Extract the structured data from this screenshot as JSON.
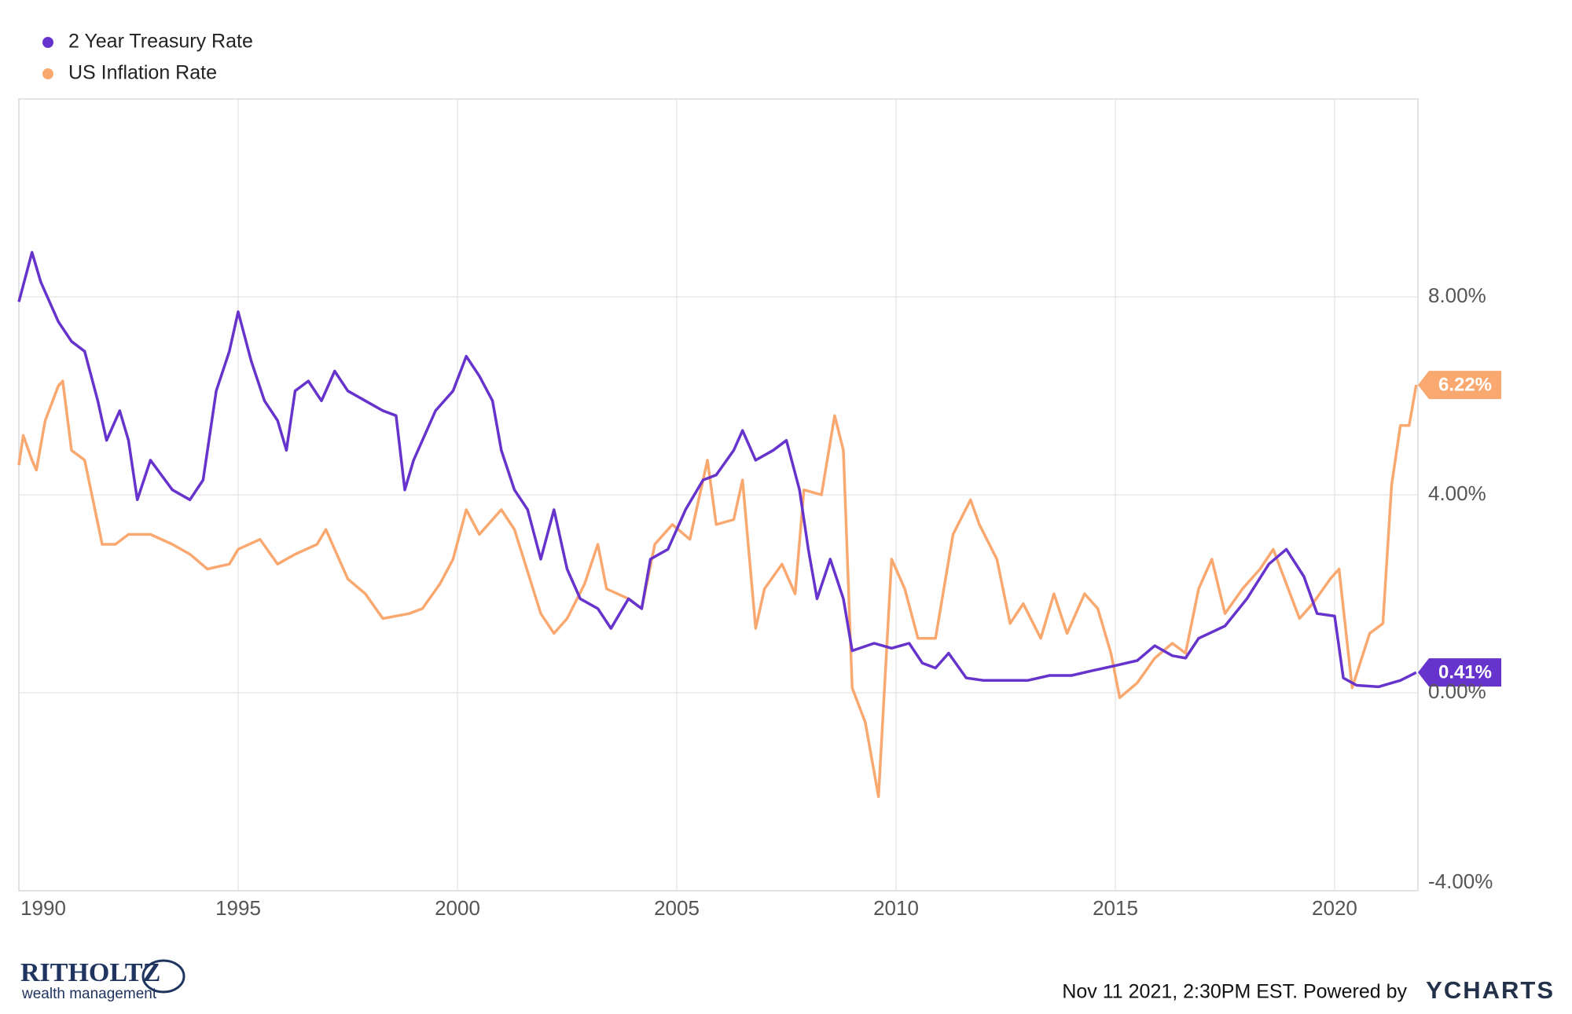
{
  "chart_data": {
    "type": "line",
    "xlim": [
      1990,
      2021.9
    ],
    "xticks": [
      1990,
      1995,
      2000,
      2005,
      2010,
      2015,
      2020
    ],
    "ylim": [
      -4,
      12
    ],
    "yticks": [
      {
        "value": -4,
        "label": "-4.00%"
      },
      {
        "value": 0,
        "label": "0.00%"
      },
      {
        "value": 4,
        "label": "4.00%"
      },
      {
        "value": 8,
        "label": "8.00%"
      }
    ],
    "grid": true,
    "legend": "top-left",
    "series": [
      {
        "name": "2 Year Treasury Rate",
        "color": "#6633cc",
        "last_label": "0.41%",
        "x": [
          1990.0,
          1990.3,
          1990.5,
          1990.9,
          1991.2,
          1991.5,
          1991.8,
          1992.0,
          1992.3,
          1992.5,
          1992.7,
          1993.0,
          1993.5,
          1993.9,
          1994.2,
          1994.5,
          1994.8,
          1995.0,
          1995.3,
          1995.6,
          1995.9,
          1996.1,
          1996.3,
          1996.6,
          1996.9,
          1997.2,
          1997.5,
          1997.9,
          1998.3,
          1998.6,
          1998.8,
          1999.0,
          1999.5,
          1999.9,
          2000.2,
          2000.5,
          2000.8,
          2001.0,
          2001.3,
          2001.6,
          2001.9,
          2002.2,
          2002.5,
          2002.8,
          2003.2,
          2003.5,
          2003.9,
          2004.2,
          2004.4,
          2004.8,
          2005.2,
          2005.6,
          2005.9,
          2006.3,
          2006.5,
          2006.8,
          2007.2,
          2007.5,
          2007.8,
          2008.0,
          2008.2,
          2008.5,
          2008.8,
          2009.0,
          2009.5,
          2009.9,
          2010.3,
          2010.6,
          2010.9,
          2011.2,
          2011.6,
          2012.0,
          2013.0,
          2013.5,
          2014.0,
          2014.5,
          2015.0,
          2015.5,
          2015.9,
          2016.3,
          2016.6,
          2016.9,
          2017.5,
          2018.0,
          2018.5,
          2018.9,
          2019.3,
          2019.6,
          2020.0,
          2020.2,
          2020.5,
          2021.0,
          2021.5,
          2021.86
        ],
        "values": [
          7.9,
          8.9,
          8.3,
          7.5,
          7.1,
          6.9,
          5.9,
          5.1,
          5.7,
          5.1,
          3.9,
          4.7,
          4.1,
          3.9,
          4.3,
          6.1,
          6.9,
          7.7,
          6.7,
          5.9,
          5.5,
          4.9,
          6.1,
          6.3,
          5.9,
          6.5,
          6.1,
          5.9,
          5.7,
          5.6,
          4.1,
          4.7,
          5.7,
          6.1,
          6.8,
          6.4,
          5.9,
          4.9,
          4.1,
          3.7,
          2.7,
          3.7,
          2.5,
          1.9,
          1.7,
          1.3,
          1.9,
          1.7,
          2.7,
          2.9,
          3.7,
          4.3,
          4.4,
          4.9,
          5.3,
          4.7,
          4.9,
          5.1,
          4.1,
          2.9,
          1.9,
          2.7,
          1.9,
          0.85,
          1.0,
          0.9,
          1.0,
          0.6,
          0.5,
          0.8,
          0.3,
          0.25,
          0.25,
          0.35,
          0.35,
          0.45,
          0.55,
          0.65,
          0.95,
          0.75,
          0.7,
          1.1,
          1.35,
          1.9,
          2.6,
          2.9,
          2.35,
          1.6,
          1.55,
          0.3,
          0.15,
          0.12,
          0.25,
          0.41
        ]
      },
      {
        "name": "US Inflation Rate",
        "color": "#f9a870",
        "last_label": "6.22%",
        "x": [
          1990.0,
          1990.1,
          1990.3,
          1990.4,
          1990.6,
          1990.9,
          1991.0,
          1991.2,
          1991.5,
          1991.9,
          1992.2,
          1992.5,
          1993.0,
          1993.5,
          1993.9,
          1994.3,
          1994.8,
          1995.0,
          1995.5,
          1995.9,
          1996.3,
          1996.8,
          1997.0,
          1997.5,
          1997.9,
          1998.3,
          1998.9,
          1999.2,
          1999.6,
          1999.9,
          2000.2,
          2000.5,
          2000.8,
          2001.0,
          2001.3,
          2001.9,
          2002.2,
          2002.5,
          2002.9,
          2003.2,
          2003.4,
          2003.9,
          2004.2,
          2004.5,
          2004.9,
          2005.3,
          2005.7,
          2005.9,
          2006.3,
          2006.5,
          2006.8,
          2007.0,
          2007.4,
          2007.7,
          2007.9,
          2008.3,
          2008.6,
          2008.8,
          2009.0,
          2009.3,
          2009.6,
          2009.9,
          2010.2,
          2010.5,
          2010.9,
          2011.3,
          2011.7,
          2011.9,
          2012.3,
          2012.6,
          2012.9,
          2013.3,
          2013.6,
          2013.9,
          2014.3,
          2014.6,
          2014.9,
          2015.1,
          2015.5,
          2015.9,
          2016.3,
          2016.6,
          2016.9,
          2017.2,
          2017.5,
          2017.9,
          2018.3,
          2018.6,
          2018.9,
          2019.2,
          2019.5,
          2019.9,
          2020.1,
          2020.4,
          2020.8,
          2021.1,
          2021.3,
          2021.5,
          2021.7,
          2021.86
        ],
        "values": [
          4.6,
          5.2,
          4.7,
          4.5,
          5.5,
          6.2,
          6.3,
          4.9,
          4.7,
          3.0,
          3.0,
          3.2,
          3.2,
          3.0,
          2.8,
          2.5,
          2.6,
          2.9,
          3.1,
          2.6,
          2.8,
          3.0,
          3.3,
          2.3,
          2.0,
          1.5,
          1.6,
          1.7,
          2.2,
          2.7,
          3.7,
          3.2,
          3.5,
          3.7,
          3.3,
          1.6,
          1.2,
          1.5,
          2.2,
          3.0,
          2.1,
          1.9,
          1.7,
          3.0,
          3.4,
          3.1,
          4.7,
          3.4,
          3.5,
          4.3,
          1.3,
          2.1,
          2.6,
          2.0,
          4.1,
          4.0,
          5.6,
          4.9,
          0.1,
          -0.6,
          -2.1,
          2.7,
          2.1,
          1.1,
          1.1,
          3.2,
          3.9,
          3.4,
          2.7,
          1.4,
          1.8,
          1.1,
          2.0,
          1.2,
          2.0,
          1.7,
          0.8,
          -0.1,
          0.2,
          0.7,
          1.0,
          0.8,
          2.1,
          2.7,
          1.6,
          2.1,
          2.5,
          2.9,
          2.2,
          1.5,
          1.8,
          2.3,
          2.5,
          0.1,
          1.2,
          1.4,
          4.2,
          5.4,
          5.4,
          6.22
        ]
      }
    ],
    "timestamp": "Nov 11 2021, 2:30PM EST. Powered by",
    "source": "YCHARTS",
    "brand": "RITHOLTZ",
    "brand_subtitle": "wealth management"
  }
}
